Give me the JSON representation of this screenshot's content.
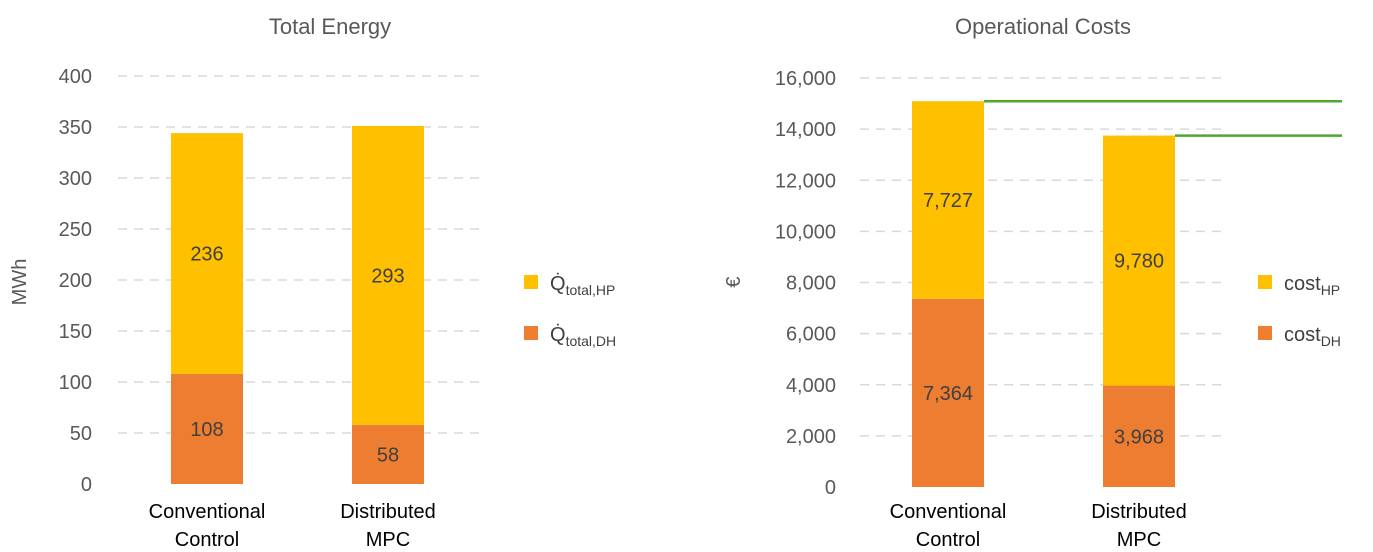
{
  "chart_data": [
    {
      "type": "bar",
      "stacked": true,
      "title": "Total Energy",
      "ylabel": "MWh",
      "ylim": [
        0,
        400
      ],
      "yticks": [
        0,
        50,
        100,
        150,
        200,
        250,
        300,
        350,
        400
      ],
      "yticks_labels": [
        "0",
        "50",
        "100",
        "150",
        "200",
        "250",
        "300",
        "350",
        "400"
      ],
      "grid": true,
      "legend_position": "right",
      "categories": [
        [
          "Conventional",
          "Control"
        ],
        [
          "Distributed",
          "MPC"
        ]
      ],
      "series": [
        {
          "name_main": "Q̇",
          "name_sub": "total,DH",
          "color": "#ED7D31",
          "values": [
            108,
            58
          ],
          "labels": [
            "108",
            "58"
          ]
        },
        {
          "name_main": "Q̇",
          "name_sub": "total,HP",
          "color": "#FFC000",
          "values": [
            236,
            293
          ],
          "labels": [
            "236",
            "293"
          ]
        }
      ]
    },
    {
      "type": "bar",
      "stacked": true,
      "title": "Operational Costs",
      "ylabel": "€",
      "ylim": [
        0,
        16000
      ],
      "yticks": [
        0,
        2000,
        4000,
        6000,
        8000,
        10000,
        12000,
        14000,
        16000
      ],
      "yticks_labels": [
        "0",
        "2,000",
        "4,000",
        "6,000",
        "8,000",
        "10,000",
        "12,000",
        "14,000",
        "16,000"
      ],
      "grid": true,
      "legend_position": "right",
      "categories": [
        [
          "Conventional",
          "Control"
        ],
        [
          "Distributed",
          "MPC"
        ]
      ],
      "series": [
        {
          "name_main": "cost",
          "name_sub": "DH",
          "color": "#ED7D31",
          "values": [
            7364,
            3968
          ],
          "labels": [
            "7,364",
            "3,968"
          ]
        },
        {
          "name_main": "cost",
          "name_sub": "HP",
          "color": "#FFC000",
          "values": [
            7727,
            9780
          ],
          "labels": [
            "7,727",
            "9,780"
          ]
        }
      ],
      "reference_lines": {
        "color": "#4EA72E",
        "values": [
          15091,
          13748
        ]
      }
    }
  ]
}
